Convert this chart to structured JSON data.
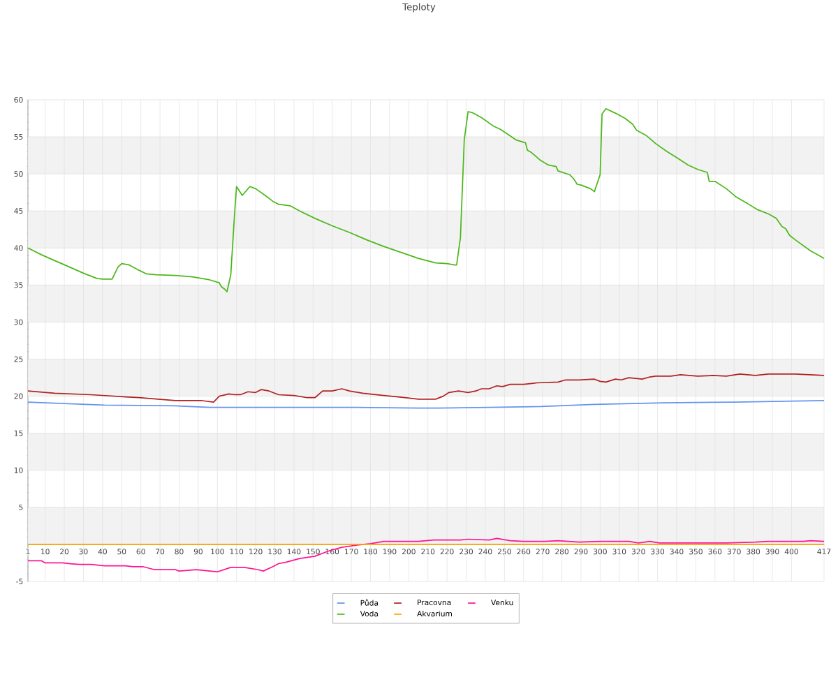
{
  "chart_data": {
    "type": "line",
    "title": "Teploty",
    "xlim": [
      1,
      417
    ],
    "xticks": [
      1,
      10,
      20,
      30,
      40,
      50,
      60,
      70,
      80,
      90,
      100,
      110,
      120,
      130,
      140,
      150,
      160,
      170,
      180,
      190,
      200,
      210,
      220,
      230,
      240,
      250,
      260,
      270,
      280,
      290,
      300,
      310,
      320,
      330,
      340,
      350,
      360,
      370,
      380,
      390,
      400,
      417
    ],
    "ylim": [
      -5,
      60
    ],
    "yticks": [
      -5,
      {
        "value": 0,
        "label": null
      },
      5,
      10,
      15,
      20,
      25,
      30,
      35,
      40,
      45,
      50,
      55,
      60
    ],
    "grid": true,
    "legend": "bottom",
    "line_style": "solid",
    "bands": [
      {
        "axis": "y",
        "from": 0,
        "to": 5,
        "color": "#f2f2f2"
      },
      {
        "axis": "y",
        "from": 10,
        "to": 15,
        "color": "#f2f2f2"
      },
      {
        "axis": "y",
        "from": 20,
        "to": 25,
        "color": "#f2f2f2"
      },
      {
        "axis": "y",
        "from": 30,
        "to": 35,
        "color": "#f2f2f2"
      },
      {
        "axis": "y",
        "from": 40,
        "to": 45,
        "color": "#f2f2f2"
      },
      {
        "axis": "y",
        "from": 50,
        "to": 55,
        "color": "#f2f2f2"
      }
    ],
    "series": [
      {
        "name": "Půda",
        "color": "#6495ed",
        "x": [
          1,
          41,
          78,
          96,
          132,
          169,
          205,
          216,
          242,
          269,
          297,
          333,
          370,
          417
        ],
        "values": [
          19.2,
          18.8,
          18.7,
          18.5,
          18.5,
          18.5,
          18.4,
          18.4,
          18.5,
          18.6,
          18.9,
          19.1,
          19.2,
          19.4
        ]
      },
      {
        "name": "Pracovna",
        "color": "#b22222",
        "x": [
          1,
          15,
          34,
          52,
          59,
          78,
          92,
          98,
          101,
          106,
          109,
          112,
          116,
          120,
          123,
          127,
          132,
          140,
          147,
          151,
          155,
          160,
          165,
          169,
          176,
          187,
          198,
          205,
          214,
          218,
          221,
          226,
          231,
          235,
          238,
          242,
          246,
          249,
          253,
          260,
          267,
          278,
          282,
          289,
          297,
          300,
          303,
          308,
          311,
          315,
          322,
          326,
          329,
          337,
          342,
          351,
          359,
          366,
          373,
          381,
          388,
          402,
          417
        ],
        "values": [
          20.7,
          20.4,
          20.2,
          19.9,
          19.8,
          19.4,
          19.4,
          19.2,
          20.0,
          20.3,
          20.2,
          20.2,
          20.6,
          20.5,
          20.9,
          20.7,
          20.2,
          20.1,
          19.8,
          19.8,
          20.7,
          20.7,
          21.0,
          20.7,
          20.4,
          20.1,
          19.8,
          19.6,
          19.6,
          20.0,
          20.5,
          20.7,
          20.5,
          20.7,
          21.0,
          21.0,
          21.4,
          21.3,
          21.6,
          21.6,
          21.8,
          21.9,
          22.2,
          22.2,
          22.3,
          22.0,
          21.9,
          22.3,
          22.2,
          22.5,
          22.3,
          22.6,
          22.7,
          22.7,
          22.9,
          22.7,
          22.8,
          22.7,
          23.0,
          22.8,
          23.0,
          23.0,
          22.8
        ]
      },
      {
        "name": "Venku",
        "color": "#ff1493",
        "x": [
          1,
          8,
          10,
          19,
          23,
          28,
          34,
          41,
          52,
          56,
          61,
          67,
          78,
          80,
          89,
          96,
          100,
          107,
          114,
          121,
          124,
          129,
          132,
          136,
          143,
          151,
          158,
          165,
          173,
          180,
          187,
          205,
          213,
          220,
          227,
          231,
          242,
          246,
          253,
          260,
          271,
          278,
          289,
          300,
          315,
          320,
          326,
          331,
          351,
          366,
          381,
          388,
          406,
          410,
          417
        ],
        "values": [
          -2.2,
          -2.2,
          -2.5,
          -2.5,
          -2.6,
          -2.7,
          -2.7,
          -2.9,
          -2.9,
          -3.0,
          -3.0,
          -3.4,
          -3.4,
          -3.6,
          -3.4,
          -3.6,
          -3.7,
          -3.1,
          -3.1,
          -3.4,
          -3.6,
          -3.0,
          -2.6,
          -2.4,
          -1.9,
          -1.6,
          -0.9,
          -0.4,
          -0.1,
          0.1,
          0.4,
          0.4,
          0.6,
          0.6,
          0.6,
          0.7,
          0.6,
          0.8,
          0.5,
          0.4,
          0.4,
          0.5,
          0.3,
          0.4,
          0.4,
          0.2,
          0.4,
          0.2,
          0.2,
          0.2,
          0.3,
          0.4,
          0.4,
          0.5,
          0.4
        ]
      },
      {
        "name": "Voda",
        "color": "#4cb81a",
        "x": [
          1,
          8,
          15,
          23,
          30,
          37,
          40,
          45,
          48,
          50,
          54,
          59,
          63,
          68,
          78,
          87,
          96,
          101,
          102,
          104,
          105,
          107,
          109,
          110,
          113,
          114,
          117,
          120,
          125,
          129,
          132,
          138,
          143,
          151,
          160,
          169,
          178,
          187,
          196,
          205,
          214,
          220,
          224,
          225,
          227,
          229,
          231,
          233,
          238,
          244,
          248,
          256,
          261,
          262,
          264,
          269,
          273,
          277,
          278,
          284,
          286,
          288,
          290,
          295,
          297,
          300,
          301,
          303,
          308,
          313,
          317,
          319,
          324,
          329,
          335,
          340,
          346,
          351,
          356,
          357,
          360,
          366,
          371,
          377,
          382,
          388,
          392,
          395,
          397,
          399,
          402,
          410,
          415,
          417
        ],
        "values": [
          40.0,
          39.1,
          38.3,
          37.4,
          36.6,
          35.9,
          35.8,
          35.8,
          37.4,
          37.9,
          37.7,
          37.0,
          36.5,
          36.4,
          36.3,
          36.1,
          35.7,
          35.3,
          34.8,
          34.4,
          34.1,
          36.4,
          44.7,
          48.3,
          47.1,
          47.4,
          48.3,
          48.0,
          47.1,
          46.3,
          45.9,
          45.7,
          45.0,
          44.0,
          43.0,
          42.1,
          41.1,
          40.2,
          39.4,
          38.6,
          38.0,
          37.9,
          37.7,
          37.7,
          41.4,
          54.6,
          58.4,
          58.3,
          57.6,
          56.5,
          56.0,
          54.6,
          54.2,
          53.2,
          52.9,
          51.8,
          51.2,
          51.0,
          50.4,
          49.9,
          49.4,
          48.6,
          48.5,
          48.0,
          47.6,
          49.9,
          58.1,
          58.8,
          58.2,
          57.5,
          56.7,
          55.9,
          55.2,
          54.1,
          53.0,
          52.2,
          51.2,
          50.6,
          50.2,
          49.0,
          49.0,
          48.0,
          46.9,
          46.0,
          45.2,
          44.6,
          44.0,
          42.9,
          42.6,
          41.7,
          41.1,
          39.6,
          38.9,
          38.6
        ]
      },
      {
        "name": "Akvarium",
        "color": "#ffa500",
        "x": [
          1,
          417
        ],
        "values": [
          0,
          0
        ]
      }
    ]
  }
}
